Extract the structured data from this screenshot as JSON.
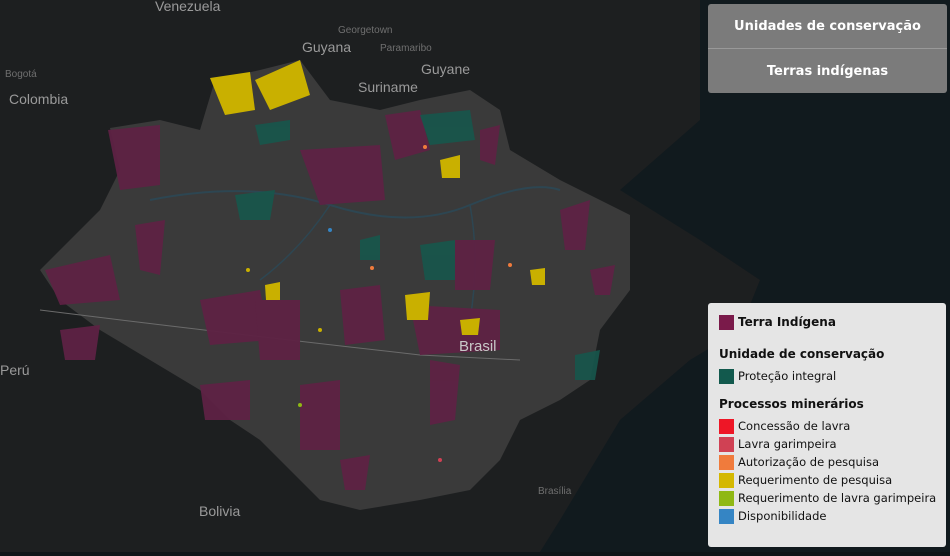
{
  "map": {
    "places": {
      "venezuela": "Venezuela",
      "guyana": "Guyana",
      "georgetown": "Georgetown",
      "paramaribo": "Paramaribo",
      "guyane": "Guyane",
      "suriname": "Suriname",
      "bogota": "Bogotá",
      "colombia": "Colombia",
      "brasil": "Brasil",
      "peru": "Perú",
      "bolivia": "Bolivia",
      "brasilia": "Brasília"
    }
  },
  "layer_buttons": {
    "conservation_units": "Unidades de conservação",
    "indigenous_lands": "Terras indígenas"
  },
  "legend": {
    "indigenous": {
      "label": "Terra Indígena",
      "color": "#7a1a4a"
    },
    "conservation_title": "Unidade de conservação",
    "conservation_items": [
      {
        "label": "Proteção integral",
        "color": "#12594d"
      }
    ],
    "mining_title": "Processos minerários",
    "mining_items": [
      {
        "label": "Concessão de lavra",
        "color": "#ee1626"
      },
      {
        "label": "Lavra garimpeira",
        "color": "#d04154"
      },
      {
        "label": "Autorização de pesquisa",
        "color": "#f07b3c"
      },
      {
        "label": "Requerimento de pesquisa",
        "color": "#d4b800"
      },
      {
        "label": "Requerimento de lavra garimpeira",
        "color": "#8fb814"
      },
      {
        "label": "Disponibilidade",
        "color": "#3585c4"
      }
    ]
  }
}
